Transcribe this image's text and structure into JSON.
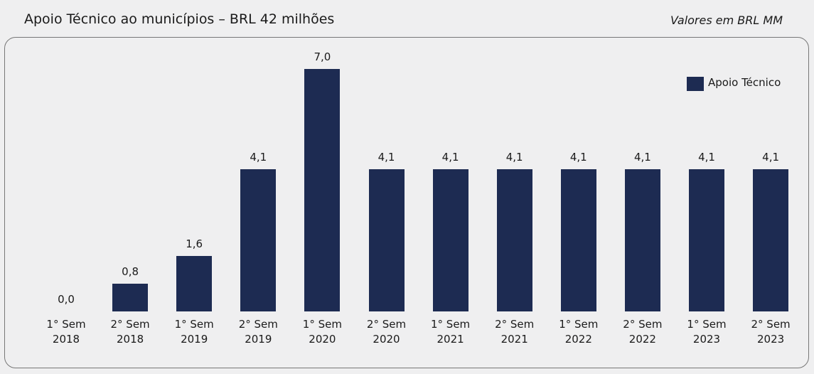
{
  "chart_data": {
    "type": "bar",
    "title": "Apoio Técnico ao municípios – BRL 42 milhões",
    "subtitle": "Valores em BRL MM",
    "categories": [
      "1° Sem 2018",
      "2° Sem 2018",
      "1° Sem 2019",
      "2° Sem 2019",
      "1° Sem 2020",
      "2° Sem 2020",
      "1° Sem 2021",
      "2° Sem 2021",
      "1° Sem 2022",
      "2° Sem 2022",
      "1° Sem 2023",
      "2° Sem 2023"
    ],
    "series": [
      {
        "name": "Apoio Técnico",
        "color": "#1d2b52",
        "values": [
          0.0,
          0.8,
          1.6,
          4.1,
          7.0,
          4.1,
          4.1,
          4.1,
          4.1,
          4.1,
          4.1,
          4.1
        ],
        "value_labels": [
          "0,0",
          "0,8",
          "1,6",
          "4,1",
          "7,0",
          "4,1",
          "4,1",
          "4,1",
          "4,1",
          "4,1",
          "4,1",
          "4,1"
        ]
      }
    ],
    "legend": "top-right"
  }
}
